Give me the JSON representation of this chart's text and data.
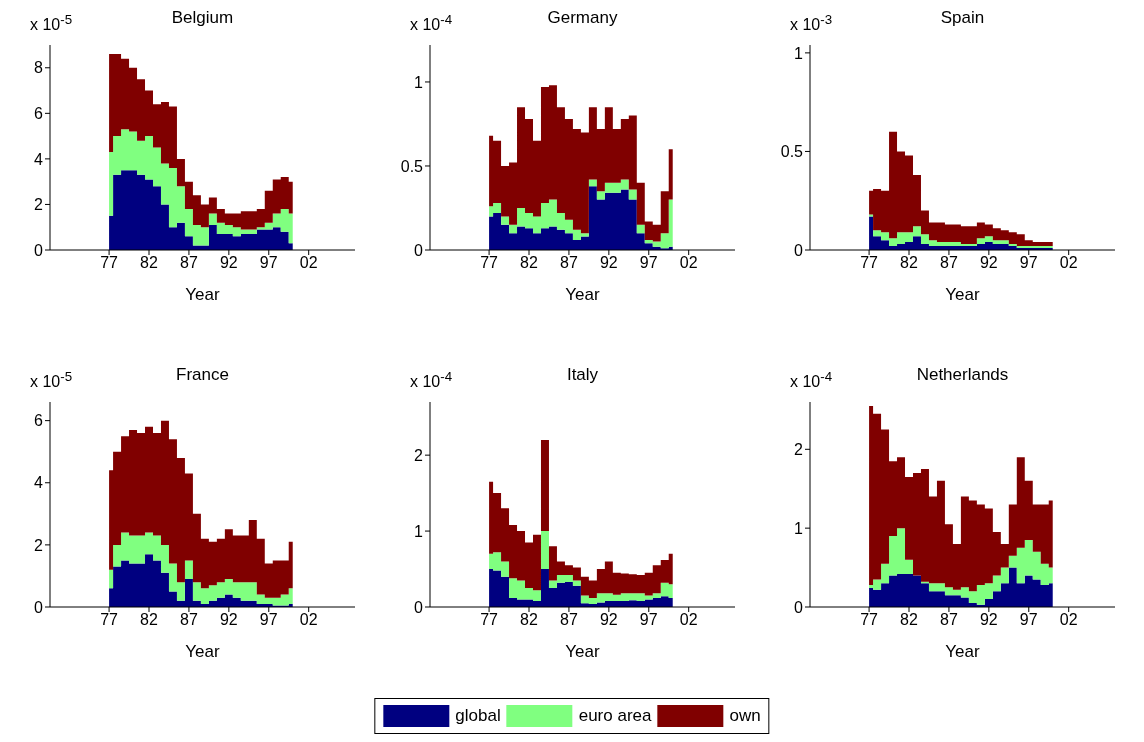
{
  "chart_data": [
    {
      "type": "area",
      "stacked": true,
      "title": "Belgium",
      "xlabel": "Year",
      "annotations": [
        "x 10$^{-5}$"
      ],
      "legend": "bottom",
      "x": [
        1977,
        1978,
        1979,
        1980,
        1981,
        1982,
        1983,
        1984,
        1985,
        1986,
        1987,
        1988,
        1989,
        1990,
        1991,
        1992,
        1993,
        1994,
        1995,
        1996,
        1997,
        1998,
        1999,
        2000
      ],
      "xlim": [
        1969.6,
        2007.8
      ],
      "xticks": [
        {
          "value": 1977,
          "label": "77"
        },
        {
          "value": 1982,
          "label": "82"
        },
        {
          "value": 1987,
          "label": "87"
        },
        {
          "value": 1992,
          "label": "92"
        },
        {
          "value": 1997,
          "label": "97"
        },
        {
          "value": 2002,
          "label": "02"
        }
      ],
      "ylim": [
        0,
        9
      ],
      "yticks": [
        0,
        2,
        4,
        6,
        8
      ],
      "series": [
        {
          "name": "global",
          "color": "#000080",
          "values": [
            1.5,
            3.3,
            3.5,
            3.5,
            3.3,
            3.1,
            2.8,
            2.0,
            1.0,
            1.2,
            0.6,
            0.2,
            0.2,
            1.1,
            0.7,
            0.7,
            0.6,
            0.7,
            0.7,
            0.9,
            0.9,
            1.0,
            0.8,
            0.3
          ]
        },
        {
          "name": "euro area",
          "color": "#80ff80",
          "values": [
            2.8,
            1.7,
            1.8,
            1.7,
            1.5,
            1.9,
            1.7,
            1.8,
            2.6,
            1.6,
            1.2,
            0.9,
            0.8,
            0.5,
            0.5,
            0.4,
            0.4,
            0.2,
            0.2,
            0.1,
            0.3,
            0.6,
            1.0,
            1.3
          ]
        },
        {
          "name": "own",
          "color": "#800000",
          "values": [
            4.3,
            3.6,
            3.1,
            2.8,
            2.7,
            2.0,
            1.9,
            2.7,
            2.7,
            1.2,
            1.2,
            1.3,
            1.0,
            0.7,
            0.6,
            0.5,
            0.6,
            0.8,
            0.8,
            0.8,
            1.4,
            1.5,
            1.4,
            1.4
          ]
        }
      ]
    },
    {
      "type": "area",
      "stacked": true,
      "title": "Germany",
      "xlabel": "Year",
      "annotations": [
        "x 10$^{-4}$"
      ],
      "x": [
        1977,
        1978,
        1979,
        1980,
        1981,
        1982,
        1983,
        1984,
        1985,
        1986,
        1987,
        1988,
        1989,
        1990,
        1991,
        1992,
        1993,
        1994,
        1995,
        1996,
        1997,
        1998,
        1999,
        2000
      ],
      "xlim": [
        1969.6,
        2007.8
      ],
      "xticks": [
        {
          "value": 1977,
          "label": "77"
        },
        {
          "value": 1982,
          "label": "82"
        },
        {
          "value": 1987,
          "label": "87"
        },
        {
          "value": 1992,
          "label": "92"
        },
        {
          "value": 1997,
          "label": "97"
        },
        {
          "value": 2002,
          "label": "02"
        }
      ],
      "ylim": [
        0,
        1.22
      ],
      "yticks": [
        0,
        0.5,
        1
      ],
      "series": [
        {
          "color": "#000080",
          "values": [
            0.2,
            0.22,
            0.15,
            0.1,
            0.14,
            0.13,
            0.1,
            0.13,
            0.14,
            0.12,
            0.1,
            0.06,
            0.08,
            0.38,
            0.3,
            0.34,
            0.34,
            0.36,
            0.3,
            0.1,
            0.04,
            0.02,
            0.01,
            0.02
          ]
        },
        {
          "color": "#80ff80",
          "values": [
            0.06,
            0.06,
            0.05,
            0.05,
            0.11,
            0.09,
            0.1,
            0.15,
            0.16,
            0.1,
            0.08,
            0.06,
            0.02,
            0.04,
            0.05,
            0.06,
            0.06,
            0.06,
            0.06,
            0.05,
            0.02,
            0.03,
            0.09,
            0.28
          ]
        },
        {
          "color": "#800000",
          "values": [
            0.42,
            0.37,
            0.3,
            0.37,
            0.6,
            0.56,
            0.45,
            0.69,
            0.68,
            0.63,
            0.6,
            0.6,
            0.6,
            0.43,
            0.37,
            0.45,
            0.32,
            0.36,
            0.44,
            0.25,
            0.11,
            0.1,
            0.25,
            0.3
          ]
        }
      ]
    },
    {
      "type": "area",
      "stacked": true,
      "title": "Spain",
      "xlabel": "Year",
      "annotations": [
        "x 10$^{-3}$"
      ],
      "x": [
        1977,
        1978,
        1979,
        1980,
        1981,
        1982,
        1983,
        1984,
        1985,
        1986,
        1987,
        1988,
        1989,
        1990,
        1991,
        1992,
        1993,
        1994,
        1995,
        1996,
        1997,
        1998,
        1999,
        2000
      ],
      "xlim": [
        1969.6,
        2007.8
      ],
      "xticks": [
        {
          "value": 1977,
          "label": "77"
        },
        {
          "value": 1982,
          "label": "82"
        },
        {
          "value": 1987,
          "label": "87"
        },
        {
          "value": 1992,
          "label": "92"
        },
        {
          "value": 1997,
          "label": "97"
        },
        {
          "value": 2002,
          "label": "02"
        }
      ],
      "ylim": [
        0,
        1.04
      ],
      "yticks": [
        0,
        0.5,
        1
      ],
      "series": [
        {
          "color": "#000080",
          "values": [
            0.17,
            0.07,
            0.05,
            0.02,
            0.03,
            0.04,
            0.07,
            0.03,
            0.02,
            0.02,
            0.02,
            0.02,
            0.02,
            0.02,
            0.03,
            0.04,
            0.03,
            0.03,
            0.02,
            0.01,
            0.01,
            0.01,
            0.01,
            0.01
          ]
        },
        {
          "color": "#80ff80",
          "values": [
            0.01,
            0.03,
            0.04,
            0.04,
            0.06,
            0.05,
            0.05,
            0.05,
            0.03,
            0.02,
            0.02,
            0.02,
            0.01,
            0.01,
            0.03,
            0.03,
            0.02,
            0.02,
            0.01,
            0.01,
            0.01,
            0.01,
            0.01,
            0.01
          ]
        },
        {
          "color": "#800000",
          "values": [
            0.12,
            0.21,
            0.21,
            0.54,
            0.41,
            0.39,
            0.26,
            0.12,
            0.09,
            0.1,
            0.09,
            0.09,
            0.09,
            0.09,
            0.08,
            0.06,
            0.06,
            0.05,
            0.06,
            0.06,
            0.03,
            0.02,
            0.02,
            0.02
          ]
        }
      ]
    },
    {
      "type": "area",
      "stacked": true,
      "title": "France",
      "xlabel": "Year",
      "annotations": [
        "x 10$^{-5}$"
      ],
      "x": [
        1977,
        1978,
        1979,
        1980,
        1981,
        1982,
        1983,
        1984,
        1985,
        1986,
        1987,
        1988,
        1989,
        1990,
        1991,
        1992,
        1993,
        1994,
        1995,
        1996,
        1997,
        1998,
        1999,
        2000
      ],
      "xlim": [
        1969.6,
        2007.8
      ],
      "xticks": [
        {
          "value": 1977,
          "label": "77"
        },
        {
          "value": 1982,
          "label": "82"
        },
        {
          "value": 1987,
          "label": "87"
        },
        {
          "value": 1992,
          "label": "92"
        },
        {
          "value": 1997,
          "label": "97"
        },
        {
          "value": 2002,
          "label": "02"
        }
      ],
      "ylim": [
        0,
        6.6
      ],
      "yticks": [
        0,
        2,
        4,
        6
      ],
      "series": [
        {
          "color": "#000080",
          "values": [
            0.6,
            1.3,
            1.5,
            1.4,
            1.4,
            1.7,
            1.5,
            1.1,
            0.5,
            0.2,
            0.9,
            0.2,
            0.1,
            0.2,
            0.3,
            0.4,
            0.3,
            0.2,
            0.2,
            0.1,
            0.1,
            0.05,
            0.05,
            0.1
          ]
        },
        {
          "color": "#80ff80",
          "values": [
            0.6,
            0.7,
            0.9,
            0.9,
            0.9,
            0.7,
            0.8,
            0.9,
            0.9,
            0.6,
            0.6,
            0.6,
            0.5,
            0.5,
            0.5,
            0.5,
            0.5,
            0.6,
            0.6,
            0.3,
            0.2,
            0.25,
            0.35,
            0.5
          ]
        },
        {
          "color": "#800000",
          "values": [
            3.2,
            3.0,
            3.1,
            3.4,
            3.3,
            3.4,
            3.3,
            4.0,
            4.0,
            4.0,
            2.8,
            2.2,
            1.6,
            1.4,
            1.4,
            1.6,
            1.5,
            1.5,
            2.0,
            1.8,
            1.1,
            1.2,
            1.1,
            1.5
          ]
        }
      ]
    },
    {
      "type": "area",
      "stacked": true,
      "title": "Italy",
      "xlabel": "Year",
      "annotations": [
        "x 10$^{-4}$"
      ],
      "x": [
        1977,
        1978,
        1979,
        1980,
        1981,
        1982,
        1983,
        1984,
        1985,
        1986,
        1987,
        1988,
        1989,
        1990,
        1991,
        1992,
        1993,
        1994,
        1995,
        1996,
        1997,
        1998,
        1999,
        2000
      ],
      "xlim": [
        1969.6,
        2007.8
      ],
      "xticks": [
        {
          "value": 1977,
          "label": "77"
        },
        {
          "value": 1982,
          "label": "82"
        },
        {
          "value": 1987,
          "label": "87"
        },
        {
          "value": 1992,
          "label": "92"
        },
        {
          "value": 1997,
          "label": "97"
        },
        {
          "value": 2002,
          "label": "02"
        }
      ],
      "ylim": [
        0,
        2.7
      ],
      "yticks": [
        0,
        1,
        2
      ],
      "series": [
        {
          "color": "#000080",
          "values": [
            0.5,
            0.48,
            0.4,
            0.12,
            0.1,
            0.1,
            0.08,
            0.5,
            0.25,
            0.32,
            0.33,
            0.28,
            0.05,
            0.04,
            0.06,
            0.08,
            0.08,
            0.08,
            0.09,
            0.08,
            0.1,
            0.12,
            0.14,
            0.12
          ]
        },
        {
          "color": "#80ff80",
          "values": [
            0.2,
            0.24,
            0.2,
            0.26,
            0.25,
            0.15,
            0.14,
            0.5,
            0.1,
            0.1,
            0.09,
            0.07,
            0.1,
            0.08,
            0.12,
            0.1,
            0.08,
            0.1,
            0.09,
            0.1,
            0.05,
            0.06,
            0.18,
            0.18
          ]
        },
        {
          "color": "#800000",
          "values": [
            0.95,
            0.78,
            0.7,
            0.7,
            0.65,
            0.6,
            0.73,
            1.2,
            0.45,
            0.18,
            0.13,
            0.17,
            0.25,
            0.23,
            0.32,
            0.42,
            0.29,
            0.26,
            0.25,
            0.24,
            0.3,
            0.37,
            0.3,
            0.4
          ]
        }
      ]
    },
    {
      "type": "area",
      "stacked": true,
      "title": "Netherlands",
      "xlabel": "Year",
      "annotations": [
        "x 10$^{-4}$"
      ],
      "x": [
        1977,
        1978,
        1979,
        1980,
        1981,
        1982,
        1983,
        1984,
        1985,
        1986,
        1987,
        1988,
        1989,
        1990,
        1991,
        1992,
        1993,
        1994,
        1995,
        1996,
        1997,
        1998,
        1999,
        2000
      ],
      "xlim": [
        1969.6,
        2007.8
      ],
      "xticks": [
        {
          "value": 1977,
          "label": "77"
        },
        {
          "value": 1982,
          "label": "82"
        },
        {
          "value": 1987,
          "label": "87"
        },
        {
          "value": 1992,
          "label": "92"
        },
        {
          "value": 1997,
          "label": "97"
        },
        {
          "value": 2002,
          "label": "02"
        }
      ],
      "ylim": [
        0,
        2.6
      ],
      "yticks": [
        0,
        1,
        2
      ],
      "series": [
        {
          "color": "#000080",
          "values": [
            0.24,
            0.22,
            0.3,
            0.4,
            0.42,
            0.42,
            0.4,
            0.3,
            0.2,
            0.2,
            0.15,
            0.15,
            0.12,
            0.05,
            0.03,
            0.1,
            0.2,
            0.3,
            0.5,
            0.3,
            0.4,
            0.35,
            0.28,
            0.3
          ]
        },
        {
          "color": "#80ff80",
          "values": [
            0.04,
            0.13,
            0.25,
            0.5,
            0.58,
            0.18,
            0.0,
            0.02,
            0.1,
            0.1,
            0.1,
            0.07,
            0.13,
            0.15,
            0.25,
            0.2,
            0.2,
            0.2,
            0.15,
            0.45,
            0.45,
            0.35,
            0.27,
            0.2
          ]
        },
        {
          "color": "#800000",
          "values": [
            2.27,
            2.1,
            1.7,
            0.95,
            0.9,
            1.05,
            1.3,
            1.43,
            1.1,
            1.3,
            0.8,
            0.58,
            1.15,
            1.15,
            1.02,
            0.95,
            0.55,
            0.3,
            0.65,
            1.15,
            0.75,
            0.6,
            0.75,
            0.85
          ]
        }
      ]
    }
  ]
}
